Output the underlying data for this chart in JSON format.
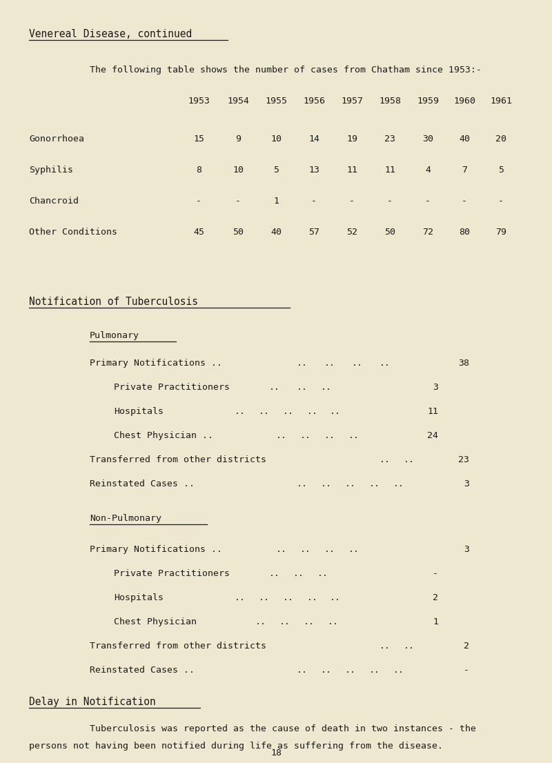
{
  "bg_color": "#eee8d0",
  "text_color": "#1a1a1a",
  "page_number": "18",
  "title": "Venereal Disease, continued",
  "intro": "The following table shows the number of cases from Chatham since 1953:-",
  "years": [
    "1953",
    "1954",
    "1955",
    "1956",
    "1957",
    "1958",
    "1959",
    "1960",
    "1961"
  ],
  "table_rows": [
    {
      "label": "Gonorrhoea",
      "values": [
        "15",
        "9",
        "10",
        "14",
        "19",
        "23",
        "30",
        "40",
        "20"
      ]
    },
    {
      "label": "Syphilis",
      "values": [
        "8",
        "10",
        "5",
        "13",
        "11",
        "11",
        "4",
        "7",
        "5"
      ]
    },
    {
      "label": "Chancroid",
      "values": [
        "-",
        "-",
        "1",
        "-",
        "-",
        "-",
        "-",
        "-",
        "-"
      ]
    },
    {
      "label": "Other Conditions",
      "values": [
        "45",
        "50",
        "40",
        "57",
        "52",
        "50",
        "72",
        "80",
        "79"
      ]
    }
  ],
  "tb_section_title": "Notification of Tuberculosis",
  "pulmonary_title": "Pulmonary",
  "pulmonary_rows": [
    {
      "label": "Primary Notifications ..",
      "indent": 0,
      "line": "Primary Notifications ..  ..          ..    ..         38"
    },
    {
      "label": "Private Practitioners",
      "indent": 1,
      "line": "  Private Practitioners       ..    ..    ..  3"
    },
    {
      "label": "Hospitals",
      "indent": 1,
      "line": "  Hospitals        ..   ..    ..    .. ..  11"
    },
    {
      "label": "Chest Physician ..",
      "indent": 1,
      "line": "  Chest Physician ..   ..    ..    ..   24"
    },
    {
      "label": "Transferred from other districts",
      "indent": 0,
      "line": "Transferred from other districts   ..    ..       23"
    },
    {
      "label": "Reinstated Cases ..",
      "indent": 0,
      "line": "Reinstated Cases ..    ..    ..    ..    ..      3"
    }
  ],
  "nonpulmonary_title": "Non-Pulmonary",
  "nonpulmonary_rows": [
    {
      "label": "Primary Notifications ..",
      "indent": 0,
      "line": "Primary Notifications ..    ..    ..    ..         3"
    },
    {
      "label": "Private Practitioners",
      "indent": 1,
      "line": "  Private Practitioners     ..    ..    ..   -"
    },
    {
      "label": "Hospitals",
      "indent": 1,
      "line": "  Hospitals        ..   ..    ..    ..   2"
    },
    {
      "label": "Chest Physician",
      "indent": 1,
      "line": "  Chest Physician      ..    ..    ..   1"
    },
    {
      "label": "Transferred from other districts",
      "indent": 0,
      "line": "Transferred from other districts   ..    ..       2"
    },
    {
      "label": "Reinstated Cases ..",
      "indent": 0,
      "line": "Reinstated Cases ..    ..    ..    ..    ..      -"
    }
  ],
  "delay_title": "Delay in Notification",
  "delay_line1": "        Tuberculosis was reported as the cause of death in two instances - the",
  "delay_line2": "persons not having been notified during life as suffering from the disease."
}
